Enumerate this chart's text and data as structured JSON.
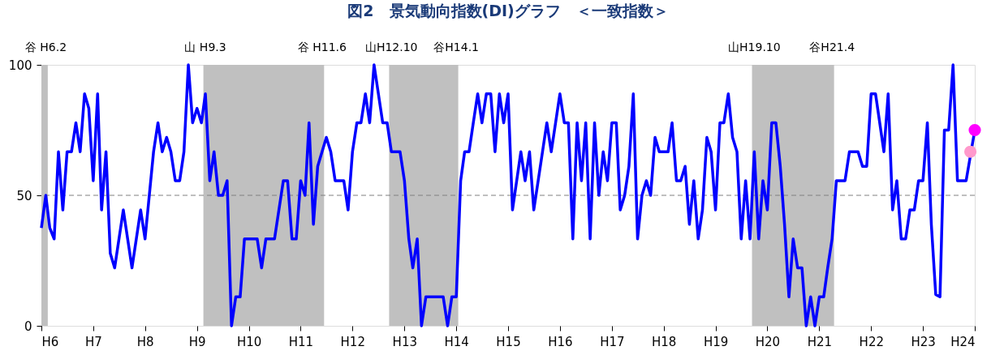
{
  "chart_data": {
    "type": "line",
    "title": "図2　景気動向指数(DI)グラフ　＜一致指数＞",
    "xlim": [
      "1994-01",
      "2012-01"
    ],
    "xticks": [
      {
        "value": "1994",
        "label": "H6"
      },
      {
        "value": "1995",
        "label": "H7"
      },
      {
        "value": "1996",
        "label": "H8"
      },
      {
        "value": "1997",
        "label": "H9"
      },
      {
        "value": "1998",
        "label": "H10"
      },
      {
        "value": "1999",
        "label": "H11"
      },
      {
        "value": "2000",
        "label": "H12"
      },
      {
        "value": "2001",
        "label": "H13"
      },
      {
        "value": "2002",
        "label": "H14"
      },
      {
        "value": "2003",
        "label": "H15"
      },
      {
        "value": "2004",
        "label": "H16"
      },
      {
        "value": "2005",
        "label": "H17"
      },
      {
        "value": "2006",
        "label": "H18"
      },
      {
        "value": "2007",
        "label": "H19"
      },
      {
        "value": "2008",
        "label": "H20"
      },
      {
        "value": "2009",
        "label": "H21"
      },
      {
        "value": "2010",
        "label": "H22"
      },
      {
        "value": "2011",
        "label": "H23"
      },
      {
        "value": "2012",
        "label": "H24"
      }
    ],
    "ylim": [
      0,
      100
    ],
    "yticks": [
      0,
      50,
      100
    ],
    "grid": false,
    "series": [
      {
        "color": "#0000ff",
        "x": [
          "1994-01",
          "1994-02",
          "1994-03",
          "1994-04",
          "1994-05",
          "1994-06",
          "1994-07",
          "1994-08",
          "1994-09",
          "1994-10",
          "1994-11",
          "1994-12",
          "1995-01",
          "1995-02",
          "1995-03",
          "1995-04",
          "1995-05",
          "1995-06",
          "1995-08",
          "1995-10",
          "1995-12",
          "1996-01",
          "1996-03",
          "1996-04",
          "1996-05",
          "1996-06",
          "1996-07",
          "1996-08",
          "1996-09",
          "1996-10",
          "1996-11",
          "1996-12",
          "1997-01",
          "1997-02",
          "1997-03",
          "1997-04",
          "1997-05",
          "1997-06",
          "1997-07",
          "1997-08",
          "1997-09",
          "1997-10",
          "1997-11",
          "1997-12",
          "1998-03",
          "1998-04",
          "1998-05",
          "1998-07",
          "1998-09",
          "1998-10",
          "1998-11",
          "1998-12",
          "1999-01",
          "1999-02",
          "1999-03",
          "1999-04",
          "1999-05",
          "1999-07",
          "1999-08",
          "1999-09",
          "1999-11",
          "1999-12",
          "2000-01",
          "2000-02",
          "2000-03",
          "2000-04",
          "2000-05",
          "2000-06",
          "2000-08",
          "2000-09",
          "2000-10",
          "2000-12",
          "2001-01",
          "2001-02",
          "2001-03",
          "2001-04",
          "2001-05",
          "2001-06",
          "2001-10",
          "2001-11",
          "2001-12",
          "2002-01",
          "2002-02",
          "2002-03",
          "2002-04",
          "2002-05",
          "2002-06",
          "2002-07",
          "2002-08",
          "2002-09",
          "2002-10",
          "2002-11",
          "2002-12",
          "2003-01",
          "2003-02",
          "2003-04",
          "2003-05",
          "2003-06",
          "2003-07",
          "2003-10",
          "2003-11",
          "2004-01",
          "2004-02",
          "2004-03",
          "2004-04",
          "2004-05",
          "2004-06",
          "2004-07",
          "2004-08",
          "2004-09",
          "2004-10",
          "2004-11",
          "2004-12",
          "2005-01",
          "2005-02",
          "2005-03",
          "2005-04",
          "2005-05",
          "2005-06",
          "2005-07",
          "2005-08",
          "2005-09",
          "2005-10",
          "2005-11",
          "2005-12",
          "2006-02",
          "2006-03",
          "2006-04",
          "2006-05",
          "2006-06",
          "2006-07",
          "2006-08",
          "2006-09",
          "2006-10",
          "2006-11",
          "2006-12",
          "2007-01",
          "2007-02",
          "2007-03",
          "2007-04",
          "2007-05",
          "2007-06",
          "2007-07",
          "2007-08",
          "2007-09",
          "2007-10",
          "2007-11",
          "2007-12",
          "2008-01",
          "2008-02",
          "2008-03",
          "2008-04",
          "2008-05",
          "2008-06",
          "2008-07",
          "2008-08",
          "2008-09",
          "2008-10",
          "2008-11",
          "2008-12",
          "2009-01",
          "2009-02",
          "2009-03",
          "2009-04",
          "2009-05",
          "2009-07",
          "2009-08",
          "2009-10",
          "2009-11",
          "2009-12",
          "2010-01",
          "2010-02",
          "2010-04",
          "2010-05",
          "2010-06",
          "2010-07",
          "2010-08",
          "2010-09",
          "2010-10",
          "2010-11",
          "2010-12",
          "2011-01",
          "2011-02",
          "2011-03",
          "2011-04",
          "2011-05",
          "2011-06",
          "2011-07",
          "2011-08",
          "2011-09",
          "2011-11",
          "2012-01"
        ],
        "values": [
          37.5,
          50,
          37.5,
          33.3,
          66.7,
          44.4,
          66.7,
          66.7,
          77.8,
          66.7,
          88.9,
          83.3,
          55.6,
          88.9,
          44.4,
          66.7,
          27.8,
          22.2,
          44.4,
          22.2,
          44.4,
          33.3,
          66.7,
          77.8,
          66.7,
          72.2,
          66.7,
          55.6,
          55.6,
          66.7,
          100,
          77.8,
          83.3,
          77.8,
          88.9,
          55.6,
          66.7,
          50,
          50,
          55.6,
          0,
          11.1,
          11.1,
          33.3,
          33.3,
          22.2,
          33.3,
          33.3,
          55.6,
          55.6,
          33.3,
          33.3,
          55.6,
          50,
          77.8,
          38.9,
          61.1,
          72.2,
          66.7,
          55.6,
          55.6,
          44.4,
          66.7,
          77.8,
          77.8,
          88.9,
          77.8,
          100,
          77.8,
          77.8,
          66.7,
          66.7,
          55.6,
          33.3,
          22.2,
          33.3,
          0,
          11.1,
          11.1,
          0,
          11.1,
          11.1,
          55.6,
          66.7,
          66.7,
          77.8,
          88.9,
          77.8,
          88.9,
          88.9,
          66.7,
          88.9,
          77.8,
          88.9,
          44.4,
          66.7,
          55.6,
          66.7,
          44.4,
          77.8,
          66.7,
          88.9,
          77.8,
          77.8,
          33.3,
          77.8,
          55.6,
          77.8,
          33.3,
          77.8,
          50,
          66.7,
          55.6,
          77.8,
          77.8,
          44.4,
          50,
          61.1,
          88.9,
          33.3,
          50,
          55.6,
          50,
          72.2,
          66.7,
          66.7,
          77.8,
          55.6,
          55.6,
          61.1,
          38.9,
          55.6,
          33.3,
          44.4,
          72.2,
          66.7,
          44.4,
          77.8,
          77.8,
          88.9,
          72.2,
          66.7,
          33.3,
          55.6,
          33.3,
          66.7,
          33.3,
          55.6,
          44.4,
          77.8,
          77.8,
          61.1,
          38.9,
          11.1,
          33.3,
          22.2,
          22.2,
          0,
          11.1,
          0,
          11.1,
          11.1,
          22.2,
          33.3,
          55.6,
          55.6,
          66.7,
          66.7,
          61.1,
          61.1,
          88.9,
          88.9,
          66.7,
          88.9,
          44.4,
          55.6,
          33.3,
          33.3,
          44.4,
          44.4,
          55.6,
          55.6,
          77.8,
          38.9,
          12,
          11.1,
          75,
          75,
          100,
          55.6,
          55.6,
          75
        ]
      },
      {
        "type": "scatter",
        "marker": "circle",
        "color": "#ff99cc",
        "x": [
          "2011-12"
        ],
        "values": [
          66.7
        ]
      },
      {
        "type": "scatter",
        "marker": "circle",
        "color": "#ff00ff",
        "x": [
          "2012-01"
        ],
        "values": [
          75
        ]
      }
    ],
    "ref_lines": [
      {
        "axis": "y",
        "value": 50,
        "color": "#808080",
        "line_style": "dashed"
      }
    ],
    "bands": [
      {
        "axis": "x",
        "from": "1994-01",
        "to": "1994-02-15",
        "color": "#c0c0c0"
      },
      {
        "axis": "x",
        "from": "1997-02-15",
        "to": "1999-06-15",
        "color": "#c0c0c0"
      },
      {
        "axis": "x",
        "from": "2000-09-15",
        "to": "2002-01-15",
        "color": "#c0c0c0"
      },
      {
        "axis": "x",
        "from": "2007-09-15",
        "to": "2009-04-15",
        "color": "#c0c0c0"
      }
    ],
    "annotations": [
      {
        "text": "谷 H6.2",
        "x": "1994-02",
        "y": 100
      },
      {
        "text": "山 H9.3",
        "x": "1997-03",
        "y": 100
      },
      {
        "text": "谷 H11.6",
        "x": "1999-06",
        "y": 100
      },
      {
        "text": "山H12.10",
        "x": "2000-10",
        "y": 100
      },
      {
        "text": "谷H14.1",
        "x": "2002-01",
        "y": 100
      },
      {
        "text": "山H19.10",
        "x": "2007-10",
        "y": 100
      },
      {
        "text": "谷H21.4",
        "x": "2009-04",
        "y": 100
      }
    ]
  }
}
